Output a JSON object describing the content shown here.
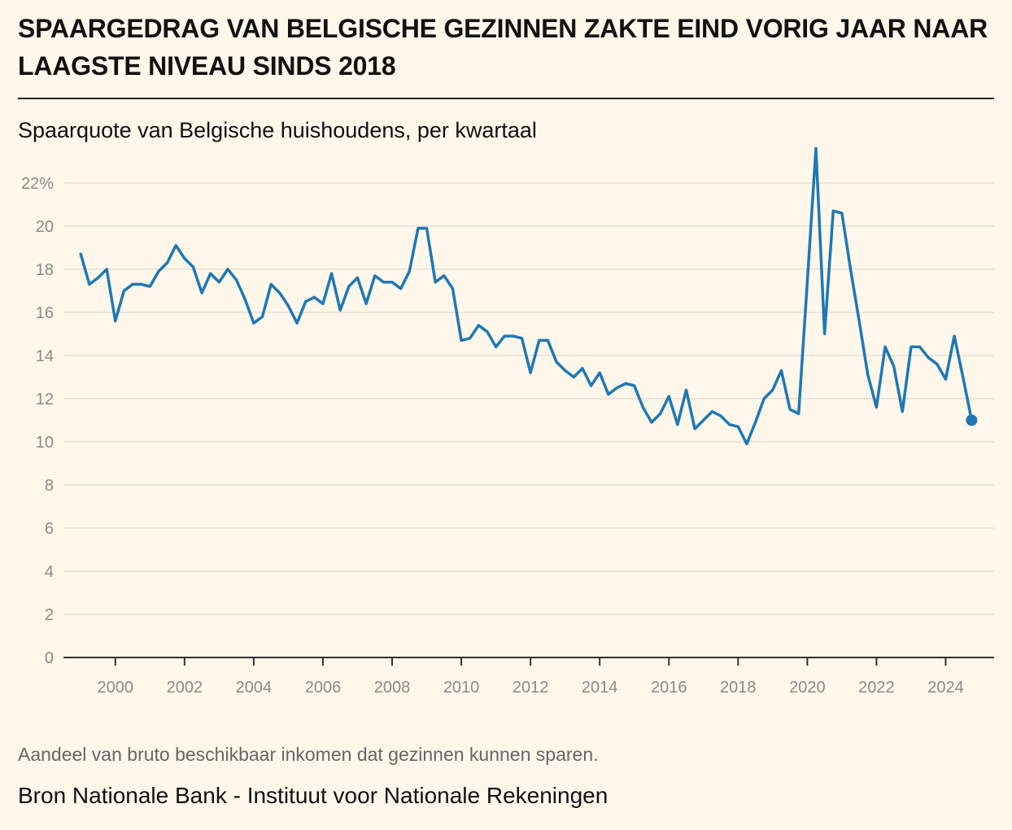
{
  "header": {
    "title": "SPAARGEDRAG VAN BELGISCHE GEZINNEN ZAKTE EIND VORIG JAAR NAAR LAAGSTE NIVEAU SINDS 2018",
    "subtitle": "Spaarquote van Belgische huishoudens, per kwartaal"
  },
  "footer": {
    "note": "Aandeel van bruto beschikbaar inkomen dat gezinnen kunnen sparen.",
    "source": "Bron Nationale Bank - Instituut voor Nationale Rekeningen"
  },
  "colors": {
    "background": "#fff7ea",
    "line": "#1f78b4",
    "grid": "#e6e0d6",
    "axis": "#333333",
    "tick_text": "#8a8a8a"
  },
  "chart_data": {
    "type": "line",
    "title": "Spaarquote van Belgische huishoudens, per kwartaal",
    "xlabel": "",
    "ylabel": "",
    "xlim": [
      1999.0,
      2024.75
    ],
    "ylim": [
      0,
      23.5
    ],
    "y_ticks": [
      0,
      2,
      4,
      6,
      8,
      10,
      12,
      14,
      16,
      18,
      20,
      22
    ],
    "y_tick_labels": [
      "0",
      "2",
      "4",
      "6",
      "8",
      "10",
      "12",
      "14",
      "16",
      "18",
      "20",
      "22%"
    ],
    "x_ticks": [
      2000,
      2002,
      2004,
      2006,
      2008,
      2010,
      2012,
      2014,
      2016,
      2018,
      2020,
      2022,
      2024
    ],
    "x_tick_labels": [
      "2000",
      "2002",
      "2004",
      "2006",
      "2008",
      "2010",
      "2012",
      "2014",
      "2016",
      "2018",
      "2020",
      "2022",
      "2024"
    ],
    "grid": true,
    "end_marker": true,
    "series": [
      {
        "name": "Spaarquote",
        "start_year": 1999.0,
        "step": 0.25,
        "values": [
          18.7,
          17.3,
          17.6,
          18.0,
          15.6,
          17.0,
          17.3,
          17.3,
          17.2,
          17.9,
          18.3,
          19.1,
          18.5,
          18.1,
          16.9,
          17.8,
          17.4,
          18.0,
          17.5,
          16.6,
          15.5,
          15.8,
          17.3,
          16.9,
          16.3,
          15.5,
          16.5,
          16.7,
          16.4,
          17.8,
          16.1,
          17.2,
          17.6,
          16.4,
          17.7,
          17.4,
          17.4,
          17.1,
          17.9,
          19.9,
          19.9,
          17.4,
          17.7,
          17.1,
          14.7,
          14.8,
          15.4,
          15.1,
          14.4,
          14.9,
          14.9,
          14.8,
          13.2,
          14.7,
          14.7,
          13.7,
          13.3,
          13.0,
          13.4,
          12.6,
          13.2,
          12.2,
          12.5,
          12.7,
          12.6,
          11.6,
          10.9,
          11.3,
          12.1,
          10.8,
          12.4,
          10.6,
          11.0,
          11.4,
          11.2,
          10.8,
          10.7,
          9.9,
          10.9,
          12.0,
          12.4,
          13.3,
          11.5,
          11.3,
          17.4,
          23.6,
          15.0,
          20.7,
          20.6,
          18.0,
          15.6,
          13.1,
          11.6,
          14.4,
          13.5,
          11.4,
          14.4,
          14.4,
          13.9,
          13.6,
          12.9,
          14.9,
          13.0,
          11.0
        ]
      }
    ]
  }
}
